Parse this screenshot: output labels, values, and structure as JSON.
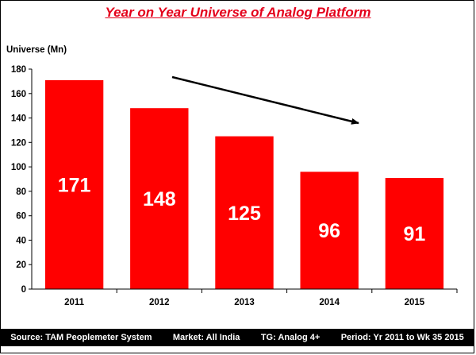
{
  "chart_data": {
    "type": "bar",
    "title": "Year on Year Universe of Analog Platform",
    "ylabel": "Universe (Mn)",
    "xlabel": "",
    "categories": [
      "2011",
      "2012",
      "2013",
      "2014",
      "2015"
    ],
    "values": [
      171,
      148,
      125,
      96,
      91
    ],
    "ylim": [
      0,
      180
    ],
    "yticks": [
      "0",
      "20",
      "40",
      "60",
      "80",
      "100",
      "120",
      "140",
      "160",
      "180"
    ],
    "grid": false,
    "legend": "none",
    "bar_color": "#ff0000",
    "label_color": "#ffffff",
    "annotation": "downward trend arrow"
  },
  "footer": {
    "source": "Source: TAM Peoplemeter System",
    "market": "Market: All India",
    "tg": "TG: Analog 4+",
    "period": "Period: Yr 2011 to Wk 35 2015"
  },
  "colors": {
    "title": "#e4001b",
    "bar": "#ff0000",
    "footer_bg": "#000000"
  }
}
